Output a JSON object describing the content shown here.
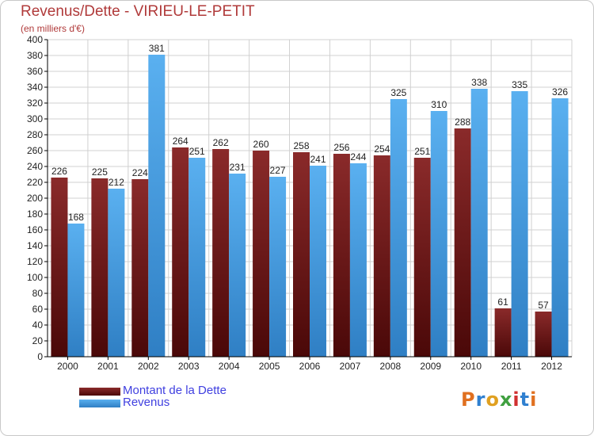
{
  "header": {
    "title": "Revenus/Dette - VIRIEU-LE-PETIT",
    "subtitle": "(en milliers d'€)"
  },
  "colors": {
    "debt": "#7a1c1c",
    "revenue": "#4aa3e8",
    "grid": "#d0d0d0",
    "axis": "#000000",
    "title": "#b03a3a",
    "legend_text": "#4040e0"
  },
  "chart_data": {
    "type": "bar",
    "title": "Revenus/Dette - VIRIEU-LE-PETIT",
    "ylabel": "(en milliers d'€)",
    "xlabel": "",
    "ylim": [
      0,
      400
    ],
    "ytick_step": 20,
    "grid": true,
    "legend_position": "bottom-left",
    "categories": [
      "2000",
      "2001",
      "2002",
      "2003",
      "2004",
      "2005",
      "2006",
      "2007",
      "2008",
      "2009",
      "2010",
      "2011",
      "2012"
    ],
    "series": [
      {
        "name": "Montant de la Dette",
        "values": [
          226,
          225,
          224,
          264,
          262,
          260,
          258,
          256,
          254,
          251,
          288,
          61,
          57
        ]
      },
      {
        "name": "Revenus",
        "values": [
          168,
          212,
          381,
          251,
          231,
          227,
          241,
          244,
          325,
          310,
          338,
          335,
          326
        ]
      }
    ]
  },
  "legend": {
    "items": [
      {
        "label": "Montant de la Dette"
      },
      {
        "label": "Revenus"
      }
    ]
  },
  "logo": {
    "text": "Proxiti",
    "letter_colors": [
      "#e07020",
      "#3080d0",
      "#e0a020",
      "#40a040",
      "#d03030",
      "#3080d0",
      "#e07020"
    ]
  }
}
